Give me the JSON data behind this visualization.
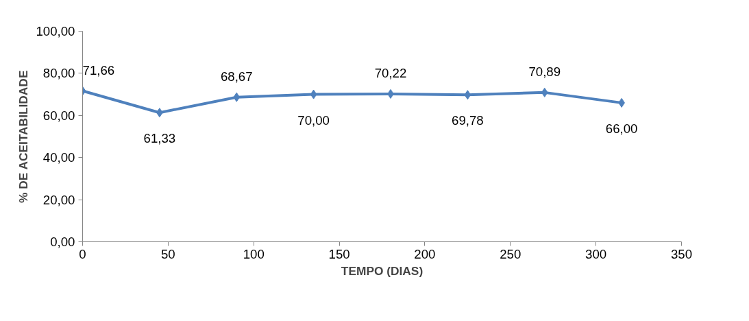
{
  "chart_data": {
    "type": "line",
    "xlabel": "TEMPO (DIAS)",
    "ylabel": "% DE ACEITABILIDADE",
    "x": [
      0,
      45,
      90,
      135,
      180,
      225,
      270,
      315
    ],
    "series": [
      {
        "color": "#4f81bd",
        "values": [
          71.66,
          61.33,
          68.67,
          70.0,
          70.22,
          69.78,
          70.89,
          66.0
        ],
        "value_labels": [
          "71,66",
          "61,33",
          "68,67",
          "70,00",
          "70,22",
          "69,78",
          "70,89",
          "66,00"
        ]
      }
    ],
    "xlim": [
      0,
      350
    ],
    "xticks": [
      0,
      50,
      100,
      150,
      200,
      250,
      300,
      350
    ],
    "ylim": [
      0,
      100
    ],
    "yticks": [
      {
        "value": 0,
        "label": "0,00"
      },
      {
        "value": 20,
        "label": "20,00"
      },
      {
        "value": 40,
        "label": "40,00"
      },
      {
        "value": 60,
        "label": "60,00"
      },
      {
        "value": 80,
        "label": "80,00"
      },
      {
        "value": 100,
        "label": "100,00"
      }
    ],
    "marker": "diamond",
    "line_style": "solid",
    "grid": false
  }
}
